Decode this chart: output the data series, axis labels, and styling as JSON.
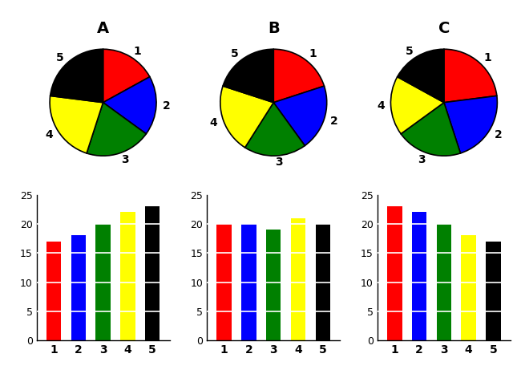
{
  "titles": [
    "A",
    "B",
    "C"
  ],
  "pie_colors": [
    "red",
    "blue",
    "green",
    "yellow",
    "black"
  ],
  "pie_labels": [
    "1",
    "2",
    "3",
    "4",
    "5"
  ],
  "pie_sizes_A": [
    17,
    18,
    20,
    22,
    23
  ],
  "pie_sizes_B": [
    20,
    20,
    19,
    21,
    20
  ],
  "pie_sizes_C": [
    23,
    22,
    20,
    18,
    17
  ],
  "bar_colors": [
    "red",
    "blue",
    "green",
    "yellow",
    "black"
  ],
  "bar_values_A": [
    17,
    18,
    20,
    22,
    23
  ],
  "bar_values_B": [
    20,
    20,
    19,
    21,
    20
  ],
  "bar_values_C": [
    23,
    22,
    20,
    18,
    17
  ],
  "bar_xlabels": [
    "1",
    "2",
    "3",
    "4",
    "5"
  ],
  "ylim": [
    0,
    25
  ],
  "yticks": [
    0,
    5,
    10,
    15,
    20,
    25
  ],
  "title_fontsize": 14,
  "grid_color": "white",
  "grid_linewidth": 1.2,
  "background_color": "#ffffff",
  "bar_width": 0.6,
  "startangle": 90,
  "pie_label_fontsize": 10,
  "bar_tick_fontsize": 10,
  "bar_ytick_fontsize": 9
}
